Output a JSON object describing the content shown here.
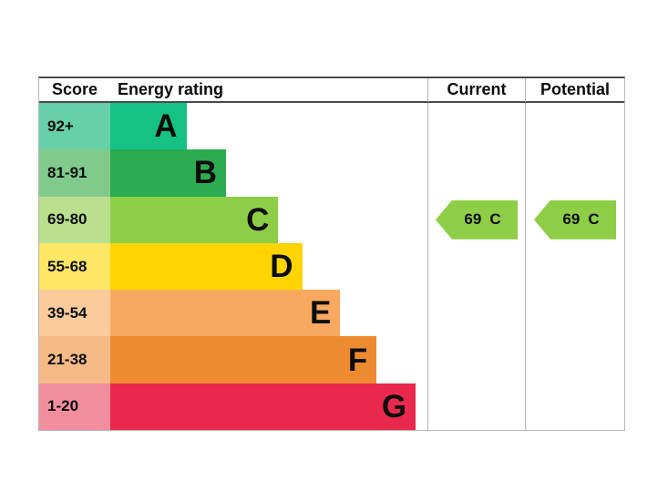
{
  "header": {
    "score": "Score",
    "rating": "Energy rating",
    "current": "Current",
    "potential": "Potential"
  },
  "chart_data": {
    "type": "bar",
    "columns": [
      "Score",
      "Energy rating",
      "Current",
      "Potential"
    ],
    "bands": [
      {
        "letter": "A",
        "score_range": "92+",
        "color": "#16c186",
        "tint": "#66d0a8",
        "width_pct": 24
      },
      {
        "letter": "B",
        "score_range": "81-91",
        "color": "#2cab50",
        "tint": "#80cb8c",
        "width_pct": 36.5
      },
      {
        "letter": "C",
        "score_range": "69-80",
        "color": "#8dce46",
        "tint": "#bae08f",
        "width_pct": 53
      },
      {
        "letter": "D",
        "score_range": "55-68",
        "color": "#ffd500",
        "tint": "#ffe765",
        "width_pct": 60.5
      },
      {
        "letter": "E",
        "score_range": "39-54",
        "color": "#f9a95f",
        "tint": "#fbcb9c",
        "width_pct": 72.5
      },
      {
        "letter": "F",
        "score_range": "21-38",
        "color": "#ee8b30",
        "tint": "#f5ba85",
        "width_pct": 84
      },
      {
        "letter": "G",
        "score_range": "1-20",
        "color": "#e8294d",
        "tint": "#f18e9d",
        "width_pct": 96.3
      }
    ],
    "current": {
      "value": "69",
      "band": "C",
      "color": "#8dce46"
    },
    "potential": {
      "value": "69",
      "band": "C",
      "color": "#8dce46"
    }
  }
}
